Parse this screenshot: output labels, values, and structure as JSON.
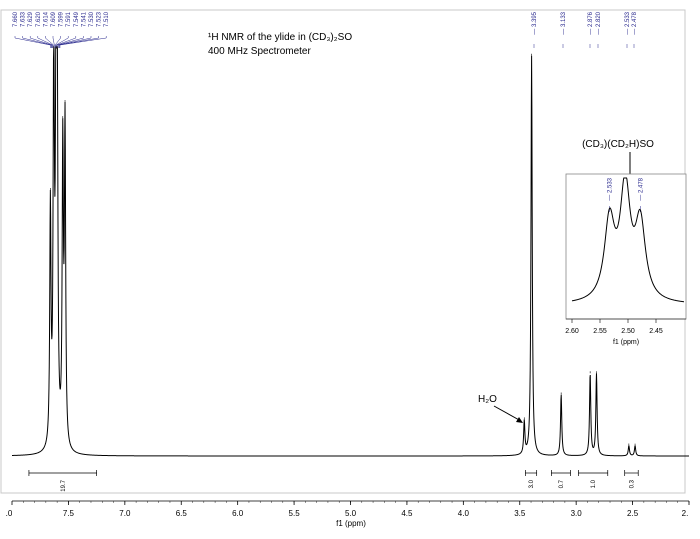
{
  "chart_data": [
    {
      "type": "line",
      "title": "¹H NMR of the ylide in (CD₃)₂SO",
      "subtitle": "400 MHz Spectrometer",
      "xlabel": "f1 (ppm)",
      "ylabel": "",
      "xlim": [
        8.0,
        2.0
      ],
      "x_reversed": true,
      "x_ticks": [
        ".0",
        "7.5",
        "7.0",
        "6.5",
        "6.0",
        "5.5",
        "5.0",
        "4.5",
        "4.0",
        "3.5",
        "3.0",
        "2.5",
        "2."
      ],
      "grid": false,
      "peak_labels_aromatic": [
        "7.660",
        "7.633",
        "7.629",
        "7.620",
        "7.614",
        "7.609",
        "7.599",
        "7.591",
        "7.549",
        "7.541",
        "7.530",
        "7.523",
        "7.510"
      ],
      "peak_labels_aliphatic": [
        "3.395",
        "3.133",
        "2.876",
        "2.820",
        "2.533",
        "2.478"
      ],
      "annotations": [
        "H₂O"
      ],
      "integrals": [
        {
          "range": [
            7.85,
            7.25
          ],
          "value": "19.7"
        },
        {
          "range": [
            3.45,
            3.35
          ],
          "value": "3.0"
        },
        {
          "range": [
            3.22,
            3.05
          ],
          "value": "0.7"
        },
        {
          "range": [
            2.98,
            2.72
          ],
          "value": "1.0"
        },
        {
          "range": [
            2.57,
            2.45
          ],
          "value": "0.3"
        }
      ],
      "peaks": [
        {
          "ppm": 7.66,
          "intensity": 0.58
        },
        {
          "ppm": 7.63,
          "intensity": 0.96
        },
        {
          "ppm": 7.61,
          "intensity": 0.78
        },
        {
          "ppm": 7.6,
          "intensity": 0.98
        },
        {
          "ppm": 7.55,
          "intensity": 0.72
        },
        {
          "ppm": 7.53,
          "intensity": 0.78
        },
        {
          "ppm": 3.46,
          "intensity": 0.08
        },
        {
          "ppm": 3.395,
          "intensity": 0.98
        },
        {
          "ppm": 3.133,
          "intensity": 0.15
        },
        {
          "ppm": 2.876,
          "intensity": 0.2
        },
        {
          "ppm": 2.82,
          "intensity": 0.2
        },
        {
          "ppm": 2.533,
          "intensity": 0.025
        },
        {
          "ppm": 2.478,
          "intensity": 0.025
        }
      ]
    },
    {
      "type": "line",
      "title": "(CD₃)(CD₂H)SO",
      "xlabel": "f1 (ppm)",
      "xlim": [
        2.6,
        2.4
      ],
      "x_reversed": true,
      "x_ticks": [
        "2.60",
        "2.55",
        "2.50",
        "2.45"
      ],
      "peak_labels": [
        "2.533",
        "2.478"
      ],
      "peaks": [
        {
          "ppm": 2.533,
          "intensity": 0.62
        },
        {
          "ppm": 2.505,
          "intensity": 0.88
        },
        {
          "ppm": 2.478,
          "intensity": 0.6
        }
      ]
    }
  ]
}
